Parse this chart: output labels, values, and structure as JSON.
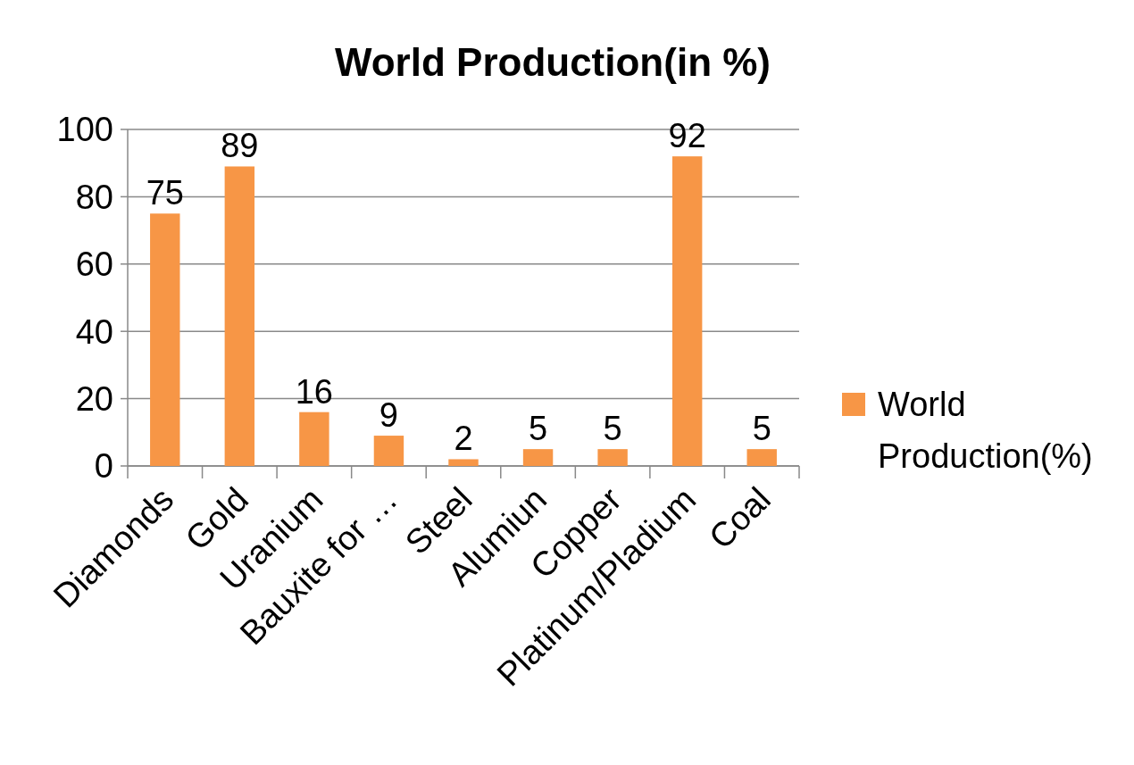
{
  "chart_data": {
    "type": "bar",
    "title": "World Production(in %)",
    "categories": [
      "Diamonds",
      "Gold",
      "Uranium",
      "Bauxite for …",
      "Steel",
      "Alumiun",
      "Copper",
      "Platinum/Pladium",
      "Coal"
    ],
    "series": [
      {
        "name": "World Production(%)",
        "color": "#f79646",
        "values": [
          75,
          89,
          16,
          9,
          2,
          5,
          5,
          92,
          5
        ]
      }
    ],
    "ylim": [
      0,
      100
    ],
    "yticks": [
      0,
      20,
      40,
      60,
      80,
      100
    ],
    "grid": "y",
    "legend": "right",
    "data_labels": true
  }
}
